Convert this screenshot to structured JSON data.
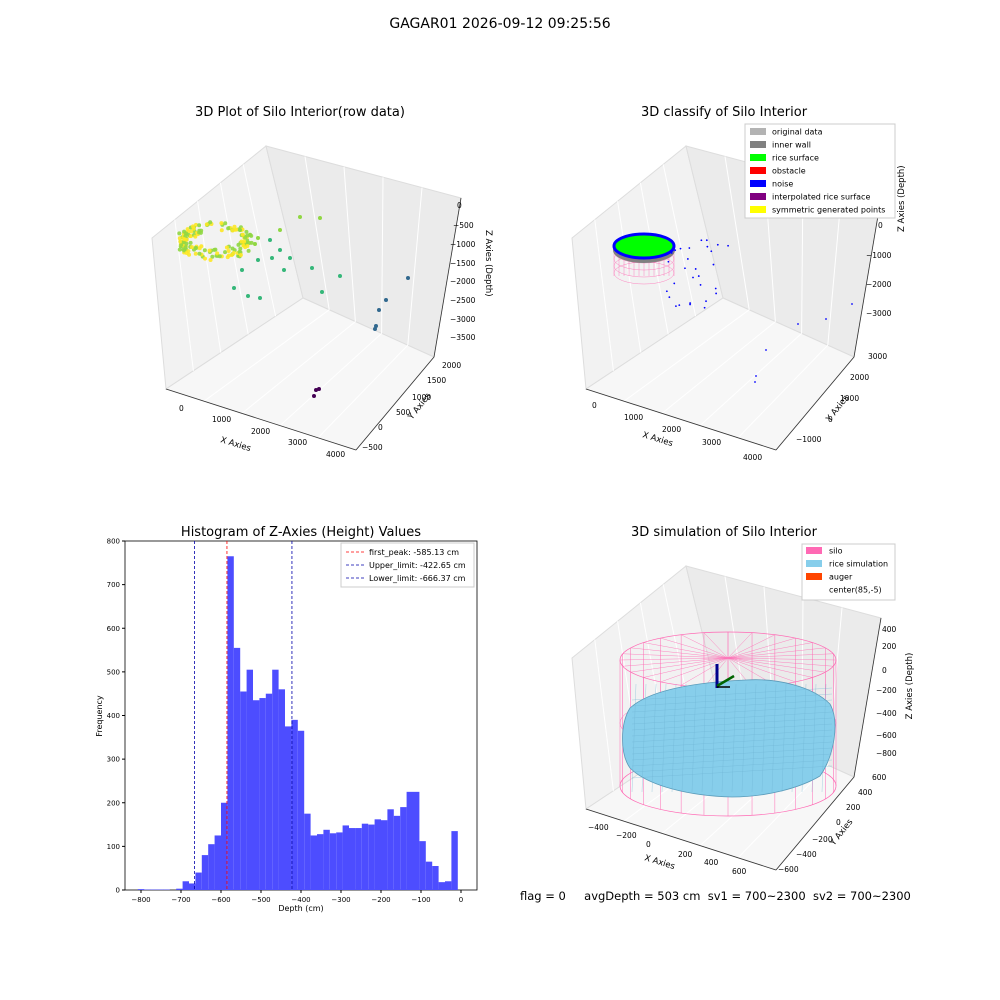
{
  "suptitle": "GAGAR01 2026-09-12 09:25:56",
  "footer": {
    "flag": "flag = 0",
    "avg_depth": "avgDepth = 503 cm",
    "sv1": "sv1 = 700~2300",
    "sv2": "sv2 = 700~2300"
  },
  "chart_data": [
    {
      "type": "scatter3d",
      "title": "3D Plot of Silo Interior(row data)",
      "xlabel": "X Axies",
      "ylabel": "Y Axies",
      "zlabel": "Z Axies (Depth)",
      "x_ticks": [
        "0",
        "1000",
        "2000",
        "3000",
        "4000"
      ],
      "y_ticks": [
        "−500",
        "0",
        "500",
        "1000",
        "1500",
        "2000"
      ],
      "z_ticks": [
        "0",
        "−500",
        "−1000",
        "−1500",
        "−2000",
        "−2500",
        "−3000",
        "−3500"
      ],
      "colormap": [
        "#440154",
        "#31688e",
        "#35b779",
        "#90d743",
        "#fde725"
      ],
      "grid": true
    },
    {
      "type": "scatter3d",
      "title": "3D classify of Silo Interior",
      "xlabel": "X Axies",
      "ylabel": "Y Axies",
      "zlabel": "Z Axies (Depth)",
      "x_ticks": [
        "0",
        "1000",
        "2000",
        "3000",
        "4000"
      ],
      "y_ticks": [
        "−1000",
        "0",
        "1000",
        "2000",
        "3000"
      ],
      "z_ticks": [
        "0",
        "−1000",
        "−2000",
        "−3000"
      ],
      "legend": [
        {
          "label": "original data",
          "color": "#b3b3b3"
        },
        {
          "label": "inner wall",
          "color": "#808080"
        },
        {
          "label": "rice surface",
          "color": "#00ff00"
        },
        {
          "label": "obstacle",
          "color": "#ff0000"
        },
        {
          "label": "noise",
          "color": "#0000ff"
        },
        {
          "label": "interpolated rice surface",
          "color": "#800080"
        },
        {
          "label": "symmetric generated points",
          "color": "#ffff00"
        }
      ],
      "legend_position": "top-right",
      "grid": true
    },
    {
      "type": "bar",
      "title": "Histogram of Z-Axies (Height) Values",
      "xlabel": "Depth (cm)",
      "ylabel": "Frequency",
      "xlim": [
        -840,
        40
      ],
      "ylim": [
        0,
        800
      ],
      "x_ticks": [
        -800,
        -700,
        -600,
        -500,
        -400,
        -300,
        -200,
        -100,
        0
      ],
      "y_ticks": [
        0,
        100,
        200,
        300,
        400,
        500,
        600,
        700,
        800
      ],
      "bin_width": 16,
      "bins": [
        [
          -808,
          2
        ],
        [
          -792,
          1
        ],
        [
          -776,
          1
        ],
        [
          -760,
          1
        ],
        [
          -744,
          1
        ],
        [
          -712,
          3
        ],
        [
          -696,
          20
        ],
        [
          -680,
          15
        ],
        [
          -664,
          40
        ],
        [
          -648,
          80
        ],
        [
          -632,
          105
        ],
        [
          -616,
          125
        ],
        [
          -600,
          200
        ],
        [
          -584,
          765
        ],
        [
          -568,
          555
        ],
        [
          -552,
          455
        ],
        [
          -536,
          505
        ],
        [
          -520,
          435
        ],
        [
          -504,
          440
        ],
        [
          -488,
          450
        ],
        [
          -472,
          505
        ],
        [
          -456,
          460
        ],
        [
          -440,
          375
        ],
        [
          -424,
          390
        ],
        [
          -408,
          365
        ],
        [
          -392,
          175
        ],
        [
          -376,
          125
        ],
        [
          -360,
          128
        ],
        [
          -344,
          138
        ],
        [
          -328,
          130
        ],
        [
          -312,
          132
        ],
        [
          -296,
          148
        ],
        [
          -280,
          142
        ],
        [
          -264,
          142
        ],
        [
          -248,
          152
        ],
        [
          -232,
          150
        ],
        [
          -216,
          162
        ],
        [
          -200,
          160
        ],
        [
          -184,
          185
        ],
        [
          -168,
          170
        ],
        [
          -152,
          190
        ],
        [
          -136,
          225
        ],
        [
          -120,
          225
        ],
        [
          -104,
          112
        ],
        [
          -88,
          65
        ],
        [
          -72,
          55
        ],
        [
          -56,
          18
        ],
        [
          -40,
          20
        ],
        [
          -24,
          135
        ]
      ],
      "bar_color": "#4d4dff",
      "lines": [
        {
          "label": "first_peak: -585.13 cm",
          "x": -585.13,
          "color": "#ff0000"
        },
        {
          "label": "Upper_limit: -422.65 cm",
          "x": -422.65,
          "color": "#0000aa"
        },
        {
          "label": "Lower_limit: -666.37 cm",
          "x": -666.37,
          "color": "#0000aa"
        }
      ],
      "legend_position": "top-right"
    },
    {
      "type": "surface3d",
      "title": "3D simulation of Silo Interior",
      "xlabel": "X Axies",
      "ylabel": "Y Axies",
      "zlabel": "Z Axies (Depth)",
      "x_ticks": [
        "−400",
        "−200",
        "0",
        "200",
        "400",
        "600"
      ],
      "y_ticks": [
        "−600",
        "−400",
        "−200",
        "0",
        "200",
        "400",
        "600"
      ],
      "z_ticks": [
        "400",
        "200",
        "0",
        "−200",
        "−400",
        "−600",
        "−800"
      ],
      "legend": [
        {
          "label": "silo",
          "color": "#ff69b4"
        },
        {
          "label": "rice simulation",
          "color": "#87ceeb"
        },
        {
          "label": "auger",
          "color": "#ff4500"
        },
        {
          "label": "center(85,-5)",
          "color": ""
        }
      ],
      "legend_position": "top-right",
      "grid": true
    }
  ]
}
